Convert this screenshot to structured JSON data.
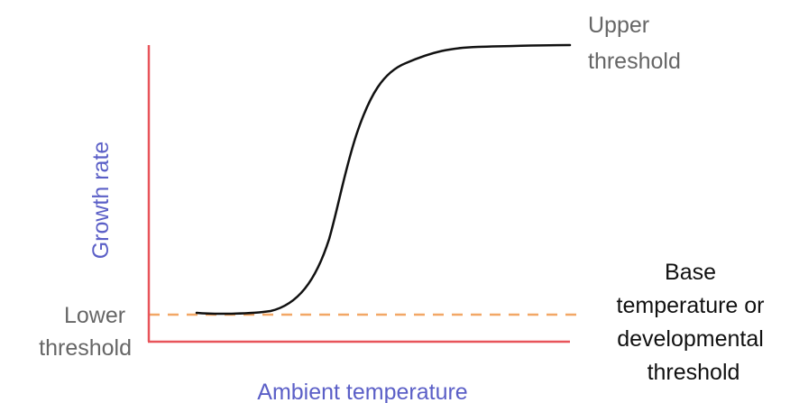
{
  "labels": {
    "y_axis": "Growth rate",
    "x_axis": "Ambient temperature",
    "upper_threshold": [
      "Upper",
      "threshold"
    ],
    "lower_threshold": [
      "Lower",
      "threshold"
    ],
    "base_temperature": [
      "Base",
      "temperature or",
      "developmental",
      "threshold"
    ]
  },
  "colors": {
    "axis": "#e8545a",
    "dashed_line": "#f2a766",
    "curve": "#111111",
    "axis_label": "#5b5fc7",
    "threshold_label": "#666666",
    "base_label": "#111111"
  }
}
